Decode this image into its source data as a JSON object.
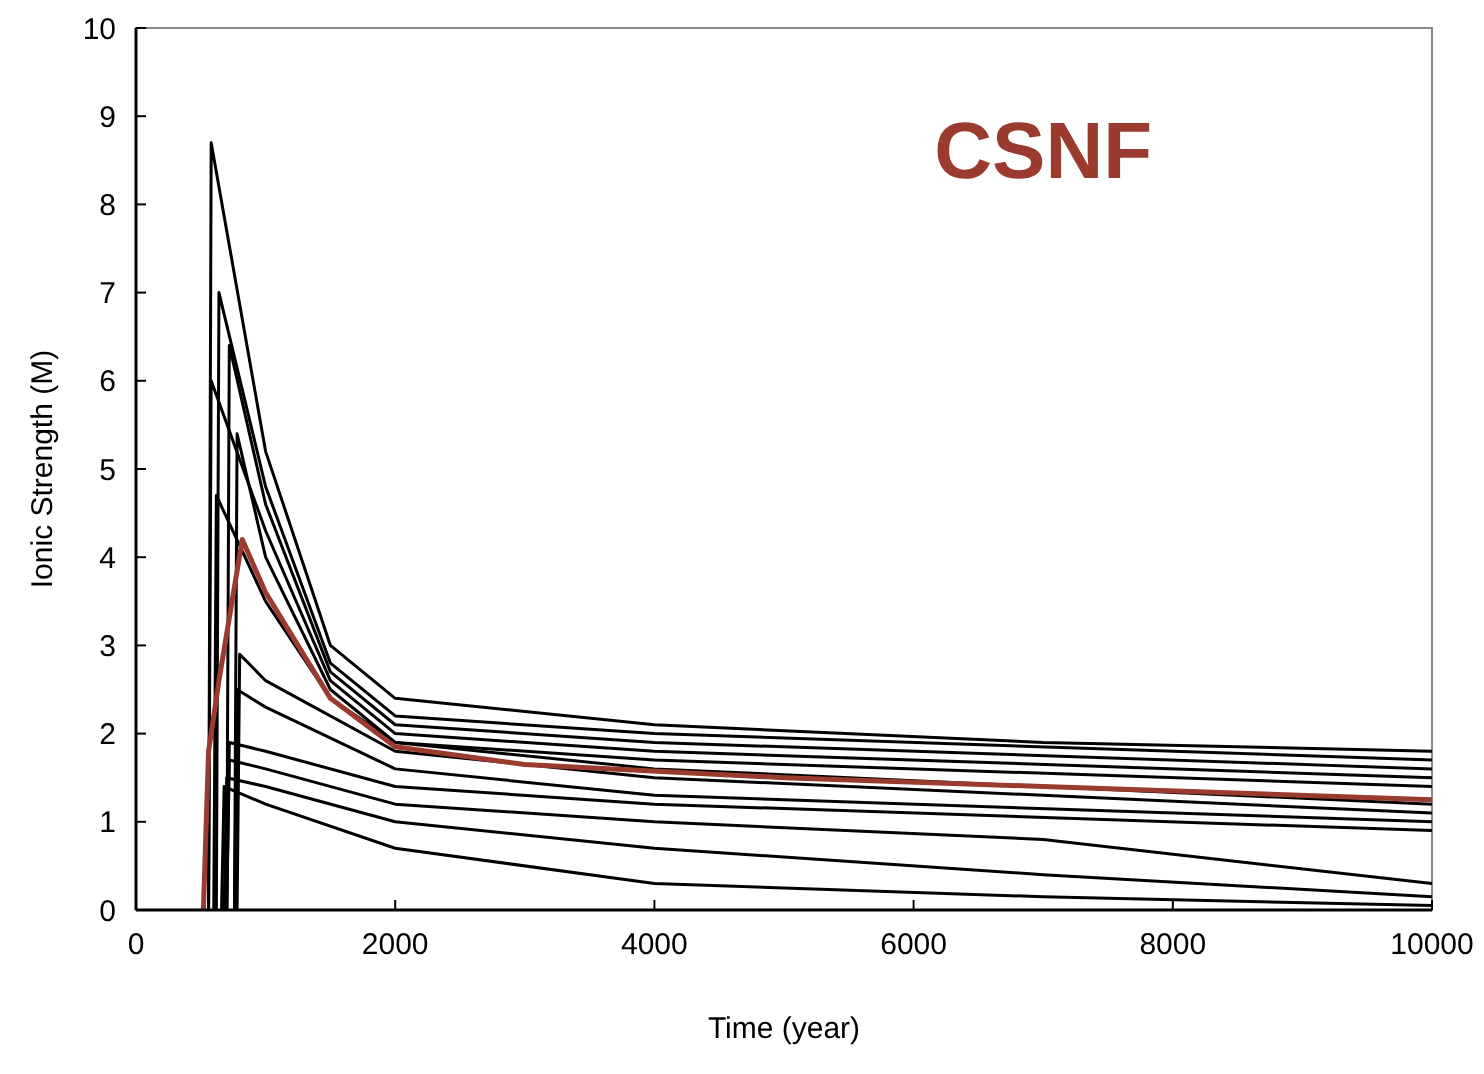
{
  "chart_data": {
    "type": "line",
    "xlabel": "Time (year)",
    "ylabel": "Ionic Strength (M)",
    "annotations": [
      "CSNF"
    ],
    "xlim": [
      0,
      10000
    ],
    "xticks": [
      0,
      2000,
      4000,
      6000,
      8000,
      10000
    ],
    "ylim": [
      0,
      10
    ],
    "yticks": [
      0,
      1,
      2,
      3,
      4,
      5,
      6,
      7,
      8,
      9,
      10
    ],
    "marker": "none",
    "line_style": "solid",
    "series": [
      {
        "color": "#000000",
        "x": [
          560,
          580,
          1000,
          1500,
          2000,
          4000,
          7000,
          10000
        ],
        "values": [
          0,
          8.7,
          5.2,
          3.0,
          2.4,
          2.1,
          1.9,
          1.8
        ]
      },
      {
        "color": "#000000",
        "x": [
          620,
          640,
          1000,
          1500,
          2000,
          4000,
          10000
        ],
        "values": [
          0,
          7.0,
          4.8,
          2.8,
          2.2,
          2.0,
          1.7
        ]
      },
      {
        "color": "#000000",
        "x": [
          700,
          720,
          1000,
          1500,
          2000,
          4000,
          10000
        ],
        "values": [
          0,
          6.4,
          4.6,
          2.7,
          2.1,
          1.9,
          1.6
        ]
      },
      {
        "color": "#000000",
        "x": [
          560,
          580,
          1000,
          1500,
          2000,
          4000,
          10000
        ],
        "values": [
          0,
          6.0,
          4.3,
          2.6,
          2.0,
          1.8,
          1.5
        ]
      },
      {
        "color": "#000000",
        "x": [
          760,
          780,
          1000,
          1500,
          2000,
          4000,
          10000
        ],
        "values": [
          0,
          5.4,
          4.0,
          2.5,
          1.9,
          1.7,
          1.4
        ]
      },
      {
        "color": "#000000",
        "x": [
          600,
          620,
          1000,
          1500,
          2000,
          4000,
          10000
        ],
        "values": [
          0,
          4.7,
          3.5,
          2.4,
          1.9,
          1.6,
          1.2
        ]
      },
      {
        "color": "#000000",
        "x": [
          780,
          800,
          1000,
          2000,
          4000,
          10000
        ],
        "values": [
          0,
          2.9,
          2.6,
          1.8,
          1.5,
          1.1
        ]
      },
      {
        "color": "#000000",
        "x": [
          760,
          780,
          1000,
          2000,
          4000,
          10000
        ],
        "values": [
          0,
          2.5,
          2.3,
          1.6,
          1.3,
          1.0
        ]
      },
      {
        "color": "#000000",
        "x": [
          700,
          720,
          1000,
          2000,
          4000,
          10000
        ],
        "values": [
          0,
          1.9,
          1.8,
          1.4,
          1.2,
          0.9
        ]
      },
      {
        "color": "#000000",
        "x": [
          700,
          720,
          1000,
          2000,
          4000,
          7000,
          10000
        ],
        "values": [
          0,
          1.7,
          1.6,
          1.2,
          1.0,
          0.8,
          0.3
        ]
      },
      {
        "color": "#000000",
        "x": [
          680,
          700,
          1000,
          2000,
          4000,
          7000,
          10000
        ],
        "values": [
          0,
          1.5,
          1.4,
          1.0,
          0.7,
          0.4,
          0.15
        ]
      },
      {
        "color": "#000000",
        "x": [
          660,
          680,
          1000,
          2000,
          4000,
          7000,
          10000
        ],
        "values": [
          0,
          1.4,
          1.2,
          0.7,
          0.3,
          0.15,
          0.05
        ]
      },
      {
        "color": "#9b3a2e",
        "x": [
          520,
          560,
          640,
          820,
          1000,
          1500,
          2000,
          3000,
          5000,
          7000,
          10000
        ],
        "values": [
          0,
          1.8,
          2.6,
          4.2,
          3.6,
          2.4,
          1.85,
          1.65,
          1.5,
          1.4,
          1.25
        ]
      }
    ]
  }
}
